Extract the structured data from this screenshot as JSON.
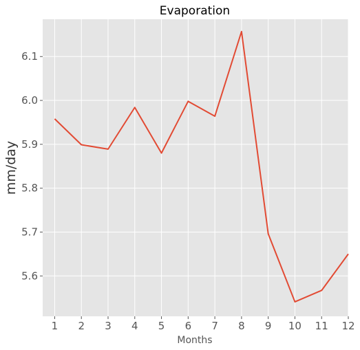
{
  "chart_data": {
    "type": "line",
    "title": "Evaporation",
    "xlabel": "Months",
    "ylabel": "mm/day",
    "x": [
      1,
      2,
      3,
      4,
      5,
      6,
      7,
      8,
      9,
      10,
      11,
      12
    ],
    "series": [
      {
        "values": [
          5.958,
          5.899,
          5.889,
          5.984,
          5.88,
          5.998,
          5.964,
          6.157,
          5.696,
          5.541,
          5.567,
          5.65
        ],
        "color": "#e24a33"
      }
    ],
    "xlim": [
      0.55,
      12
    ],
    "ylim": [
      5.508,
      6.185
    ],
    "xticks": [
      "1",
      "2",
      "3",
      "4",
      "5",
      "6",
      "7",
      "8",
      "9",
      "10",
      "11",
      "12"
    ],
    "yticks": [
      "5.6",
      "5.7",
      "5.8",
      "5.9",
      "6.0",
      "6.1"
    ],
    "grid": true,
    "legend": "none",
    "background_color": "#e5e5e5"
  }
}
